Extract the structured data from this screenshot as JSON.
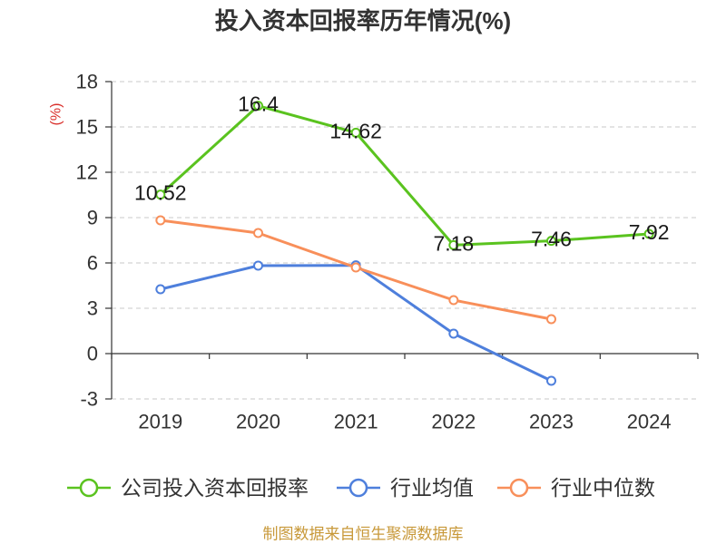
{
  "chart_data": {
    "type": "line",
    "title": "投入资本回报率历年情况(%)",
    "ylabel": "(%)",
    "categories": [
      "2019",
      "2020",
      "2021",
      "2022",
      "2023",
      "2024"
    ],
    "ylim": [
      -3,
      18
    ],
    "yticks": [
      18,
      15,
      12,
      9,
      6,
      3,
      0,
      -3
    ],
    "grid": true,
    "legend": "bottom",
    "series": [
      {
        "name": "公司投入资本回报率",
        "color": "#5ac31f",
        "data_labels": true,
        "values": [
          10.52,
          16.4,
          14.62,
          7.18,
          7.46,
          7.92
        ]
      },
      {
        "name": "行业均值",
        "color": "#4e7fdc",
        "data_labels": false,
        "values": [
          4.26,
          5.82,
          5.84,
          1.32,
          -1.8,
          null
        ]
      },
      {
        "name": "行业中位数",
        "color": "#f88f5a",
        "data_labels": false,
        "values": [
          8.82,
          7.98,
          5.7,
          3.54,
          2.28,
          null
        ]
      }
    ]
  },
  "source_note": "制图数据来自恒生聚源数据库"
}
